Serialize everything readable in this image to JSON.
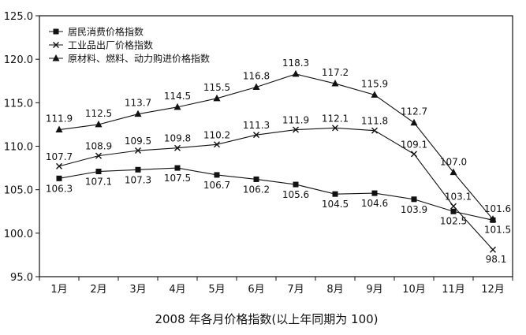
{
  "chart_data": {
    "type": "line",
    "title": "2008 年各月价格指数(以上年同期为 100)",
    "categories": [
      "1月",
      "2月",
      "3月",
      "4月",
      "5月",
      "6月",
      "7月",
      "8月",
      "9月",
      "10月",
      "11月",
      "12月"
    ],
    "ylim": [
      95.0,
      125.0
    ],
    "yticks": [
      "95.0",
      "100.0",
      "105.0",
      "110.0",
      "115.0",
      "120.0",
      "125.0"
    ],
    "legend_position": "top-left",
    "series": [
      {
        "name": "居民消费价格指数",
        "marker": "square",
        "values": [
          106.3,
          107.1,
          107.3,
          107.5,
          106.7,
          106.2,
          105.6,
          104.5,
          104.6,
          103.9,
          102.5,
          101.5
        ],
        "labels": [
          "106.3",
          "107.1",
          "107.3",
          "107.5",
          "106.7",
          "106.2",
          "105.6",
          "104.5",
          "104.6",
          "103.9",
          "102.5",
          "101.5"
        ]
      },
      {
        "name": "工业品出厂价格指数",
        "marker": "cross",
        "values": [
          107.7,
          108.9,
          109.5,
          109.8,
          110.2,
          111.3,
          111.9,
          112.1,
          111.8,
          109.1,
          103.1,
          98.1
        ],
        "labels": [
          "107.7",
          "108.9",
          "109.5",
          "109.8",
          "110.2",
          "111.3",
          "111.9",
          "112.1",
          "111.8",
          "109.1",
          "103.1",
          "98.1"
        ]
      },
      {
        "name": "原材料、燃料、动力购进价格指数",
        "marker": "triangle",
        "values": [
          111.9,
          112.5,
          113.7,
          114.5,
          115.5,
          116.8,
          118.3,
          117.2,
          115.9,
          112.7,
          107.0,
          101.6
        ],
        "labels": [
          "111.9",
          "112.5",
          "113.7",
          "114.5",
          "115.5",
          "116.8",
          "118.3",
          "117.2",
          "115.9",
          "112.7",
          "107.0",
          "101.6"
        ]
      }
    ]
  }
}
